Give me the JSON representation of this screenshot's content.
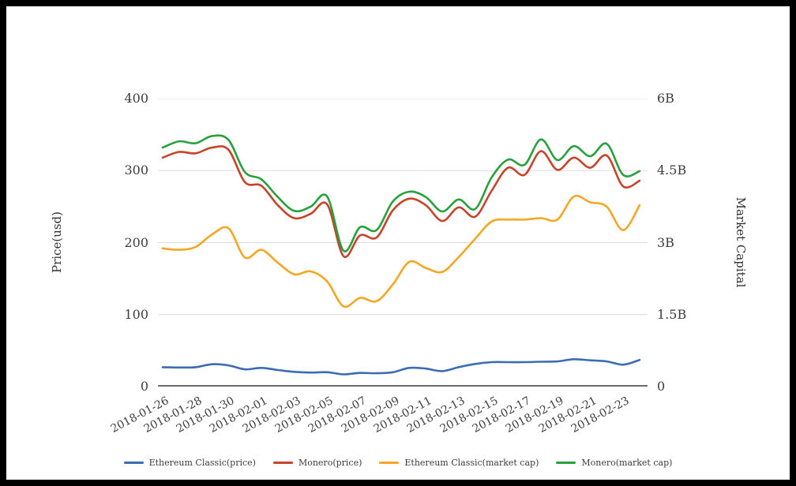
{
  "chart_data": {
    "type": "line",
    "title": "",
    "left_axis": {
      "title": "Price(usd)",
      "ticks": [
        "0",
        "100",
        "200",
        "300",
        "400"
      ],
      "range": [
        0,
        400
      ]
    },
    "right_axis": {
      "title": "Market Capital",
      "ticks": [
        "0",
        "1.5B",
        "3B",
        "4.5B",
        "6B"
      ],
      "range_billions": [
        0,
        6
      ]
    },
    "x": [
      "2018-01-26",
      "2018-01-27",
      "2018-01-28",
      "2018-01-29",
      "2018-01-30",
      "2018-01-31",
      "2018-02-01",
      "2018-02-02",
      "2018-02-03",
      "2018-02-04",
      "2018-02-05",
      "2018-02-06",
      "2018-02-07",
      "2018-02-08",
      "2018-02-09",
      "2018-02-10",
      "2018-02-11",
      "2018-02-12",
      "2018-02-13",
      "2018-02-14",
      "2018-02-15",
      "2018-02-16",
      "2018-02-17",
      "2018-02-18",
      "2018-02-19",
      "2018-02-20",
      "2018-02-21",
      "2018-02-22",
      "2018-02-23",
      "2018-02-24"
    ],
    "x_shown_tick_labels": [
      "2018-01-26",
      "2018-01-28",
      "2018-01-30",
      "2018-02-01",
      "2018-02-03",
      "2018-02-05",
      "2018-02-07",
      "2018-02-09",
      "2018-02-11",
      "2018-02-13",
      "2018-02-15",
      "2018-02-17",
      "2018-02-19",
      "2018-02-21",
      "2018-02-23"
    ],
    "x_label_step": 2,
    "grid": "horizontal-only",
    "legend_position": "bottom-center",
    "colors": {
      "accent_blue": "#3d6cb3",
      "accent_red": "#c8432b",
      "accent_yellow": "#f6a623",
      "accent_green": "#28a03c",
      "gridline": "#dcdcdc",
      "axis_line": "#3c3c3c",
      "text": "#3d3d3d"
    },
    "series": [
      {
        "name": "Ethereum Classic(price)",
        "axis": "left",
        "color": "#3d6cb3",
        "values": [
          27,
          26.5,
          27,
          31,
          29.5,
          24,
          26,
          23,
          20.5,
          19.5,
          20,
          17,
          19,
          18.5,
          20,
          26,
          25,
          21.5,
          27,
          31.5,
          34,
          34,
          34,
          34.5,
          35,
          38,
          36.5,
          35,
          30.5,
          37
        ]
      },
      {
        "name": "Monero(price)",
        "axis": "left",
        "color": "#c8432b",
        "values": [
          318,
          326,
          324,
          332,
          329,
          284,
          279,
          252,
          234,
          240,
          253,
          181,
          210,
          207,
          245,
          261,
          252,
          230,
          249,
          236,
          272,
          304,
          294,
          327,
          301,
          318,
          304,
          321,
          278,
          286
        ]
      },
      {
        "name": "Ethereum Classic(market cap)",
        "axis": "right",
        "unit": "billion USD",
        "color": "#f6a623",
        "values": [
          2.88,
          2.85,
          2.91,
          3.17,
          3.3,
          2.69,
          2.85,
          2.58,
          2.34,
          2.4,
          2.19,
          1.67,
          1.85,
          1.78,
          2.13,
          2.6,
          2.47,
          2.39,
          2.7,
          3.08,
          3.44,
          3.48,
          3.48,
          3.51,
          3.48,
          3.96,
          3.84,
          3.75,
          3.26,
          3.78
        ]
      },
      {
        "name": "Monero(market cap)",
        "axis": "right",
        "unit": "billion USD",
        "color": "#28a03c",
        "values": [
          4.98,
          5.11,
          5.07,
          5.22,
          5.14,
          4.47,
          4.32,
          3.95,
          3.66,
          3.75,
          3.96,
          2.83,
          3.32,
          3.26,
          3.86,
          4.06,
          3.95,
          3.65,
          3.9,
          3.7,
          4.36,
          4.73,
          4.62,
          5.15,
          4.72,
          5.01,
          4.8,
          5.06,
          4.41,
          4.49
        ]
      }
    ]
  }
}
